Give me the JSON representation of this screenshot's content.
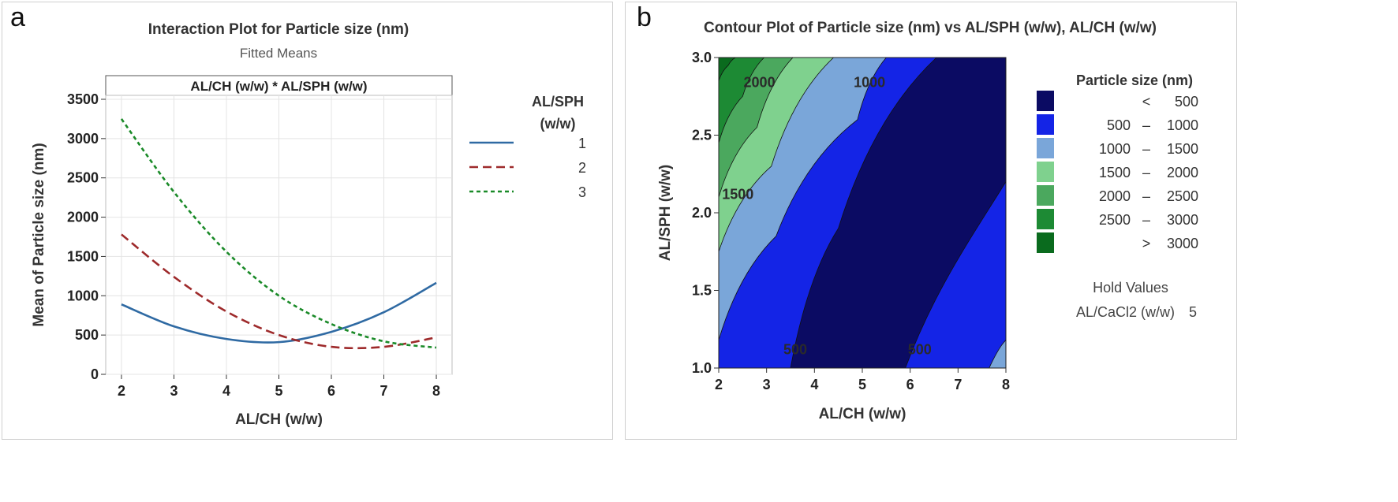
{
  "panels": [
    {
      "letter": "a"
    },
    {
      "letter": "b"
    }
  ],
  "chart_data": [
    {
      "type": "line",
      "title": "Interaction Plot for Particle size (nm)",
      "subtitle": "Fitted Means",
      "facet_label": "AL/CH (w/w) * AL/SPH (w/w)",
      "xlabel": "AL/CH (w/w)",
      "ylabel": "Mean of Particle size (nm)",
      "xlim": [
        1.7,
        8.3
      ],
      "ylim": [
        0,
        3550
      ],
      "xticks": [
        2,
        3,
        4,
        5,
        6,
        7,
        8
      ],
      "yticks": [
        0,
        500,
        1000,
        1500,
        2000,
        2500,
        3000,
        3500
      ],
      "grid": true,
      "legend": {
        "title_line1": "AL/SPH",
        "title_line2": "(w/w)",
        "placement": "right"
      },
      "x": [
        2,
        3,
        4,
        5,
        6,
        7,
        8
      ],
      "series": [
        {
          "name": "1",
          "color": "#2f6aa3",
          "dash": "solid",
          "values": [
            890,
            610,
            450,
            410,
            540,
            790,
            1165
          ]
        },
        {
          "name": "2",
          "color": "#9e2a2b",
          "dash": "dashed",
          "values": [
            1780,
            1240,
            800,
            500,
            350,
            350,
            470
          ]
        },
        {
          "name": "3",
          "color": "#1a8a28",
          "dash": "dotted",
          "values": [
            3250,
            2320,
            1560,
            1000,
            640,
            420,
            340
          ]
        }
      ]
    },
    {
      "type": "contour",
      "title": "Contour Plot of Particle size (nm) vs AL/SPH (w/w), AL/CH (w/w)",
      "xlabel": "AL/CH (w/w)",
      "ylabel": "AL/SPH (w/w)",
      "xlim": [
        2,
        8
      ],
      "ylim": [
        1.0,
        3.0
      ],
      "xticks": [
        2,
        3,
        4,
        5,
        6,
        7,
        8
      ],
      "yticks": [
        "1.0",
        "1.5",
        "2.0",
        "2.5",
        "3.0"
      ],
      "contour_labels": [
        {
          "text": "2000",
          "x": 2.85,
          "y": 2.84
        },
        {
          "text": "1000",
          "x": 5.15,
          "y": 2.84
        },
        {
          "text": "1500",
          "x": 2.4,
          "y": 2.12
        },
        {
          "text": "500",
          "x": 3.6,
          "y": 1.12
        },
        {
          "text": "500",
          "x": 6.2,
          "y": 1.12
        }
      ],
      "legend": {
        "title": "Particle size (nm)",
        "placement": "right",
        "bins": [
          {
            "low": "<",
            "sep": "",
            "high": "500",
            "color": "#0b0b63"
          },
          {
            "low": "500",
            "sep": "–",
            "high": "1000",
            "color": "#1424e6"
          },
          {
            "low": "1000",
            "sep": "–",
            "high": "1500",
            "color": "#7aa6d9"
          },
          {
            "low": "1500",
            "sep": "–",
            "high": "2000",
            "color": "#7fd18e"
          },
          {
            "low": "2000",
            "sep": "–",
            "high": "2500",
            "color": "#4ba85e"
          },
          {
            "low": "2500",
            "sep": "–",
            "high": "3000",
            "color": "#1d8a34"
          },
          {
            "low": ">",
            "sep": "",
            "high": "3000",
            "color": "#0a6b1e"
          }
        ]
      },
      "hold_values": {
        "title": "Hold Values",
        "variable": "AL/CaCl2 (w/w)",
        "value": "5"
      }
    }
  ]
}
